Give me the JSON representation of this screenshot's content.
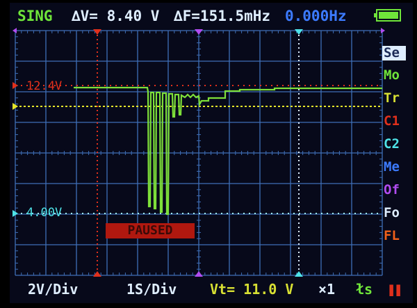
{
  "header": {
    "mode": "SING",
    "delta_v": "∆V= 8.40 V",
    "delta_f": "∆F=151.5mHz",
    "frequency": "0.000Hz",
    "battery_icon": "battery-full-icon"
  },
  "cursors": {
    "upper_label": "12.4V",
    "lower_label": "4.00V"
  },
  "status": "PAUSED",
  "side_menu": [
    {
      "label": "Se",
      "color": "#1b2a55",
      "selected": true
    },
    {
      "label": "Mo",
      "color": "#6fe53a"
    },
    {
      "label": "Tr",
      "color": "#d8e033"
    },
    {
      "label": "C1",
      "color": "#e0301c"
    },
    {
      "label": "C2",
      "color": "#4fe3e8"
    },
    {
      "label": "Me",
      "color": "#3c7bff"
    },
    {
      "label": "Of",
      "color": "#b04cf0"
    },
    {
      "label": "Fo",
      "color": "#dfeeff"
    },
    {
      "label": "FL",
      "color": "#f0601a"
    }
  ],
  "footer": {
    "volts_per_div": "2V/Div",
    "time_per_div": "1S/Div",
    "trigger_level": "Vt= 11.0 V",
    "probe": "×1",
    "trigger_edge": "łs",
    "run_state_icon": "pause-icon"
  },
  "colors": {
    "trace": "#7ee03a",
    "grid": "#3f6fb8",
    "trigger": "#e6e62a",
    "cursor_upper": "#e0301c",
    "cursor_lower": "#4fe3e8",
    "cursor_mid": "#b04cf0"
  }
}
